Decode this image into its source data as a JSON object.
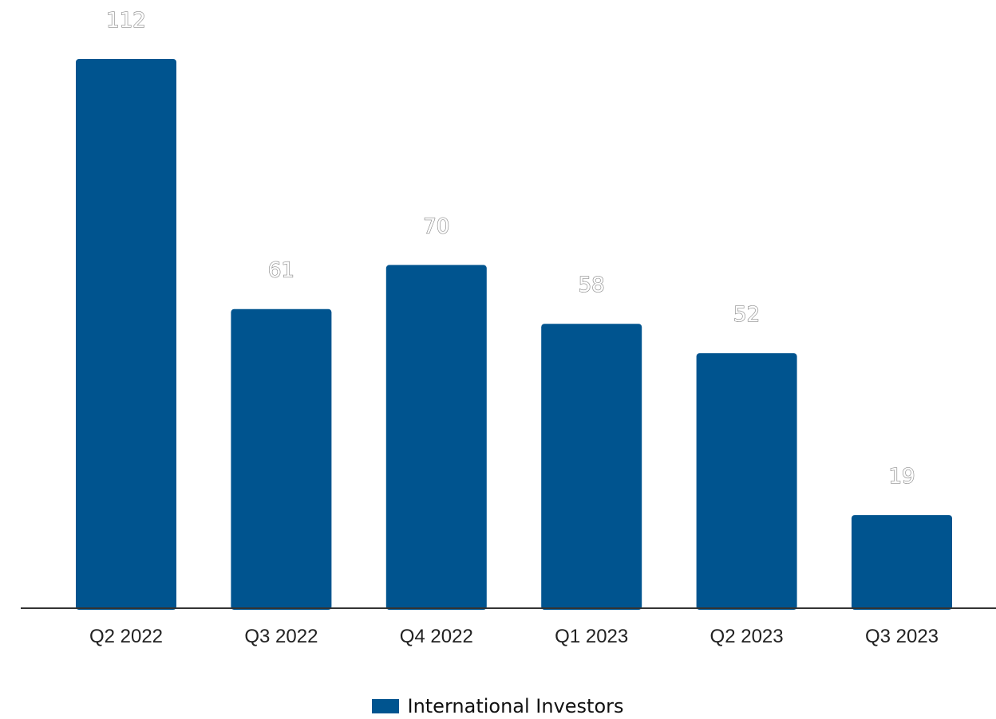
{
  "colors": {
    "bar": "#00548f",
    "axis": "#333333"
  },
  "chart_data": {
    "type": "bar",
    "categories": [
      "Q2 2022",
      "Q3 2022",
      "Q4 2022",
      "Q1 2023",
      "Q2 2023",
      "Q3 2023"
    ],
    "series": [
      {
        "name": "International Investors",
        "values": [
          112,
          61,
          70,
          58,
          52,
          19
        ]
      }
    ],
    "title": "",
    "xlabel": "",
    "ylabel": "",
    "ylim": [
      0,
      112
    ],
    "grid": false,
    "legend_position": "bottom",
    "data_labels": [
      "112",
      "61",
      "70",
      "58",
      "52",
      "19"
    ]
  }
}
